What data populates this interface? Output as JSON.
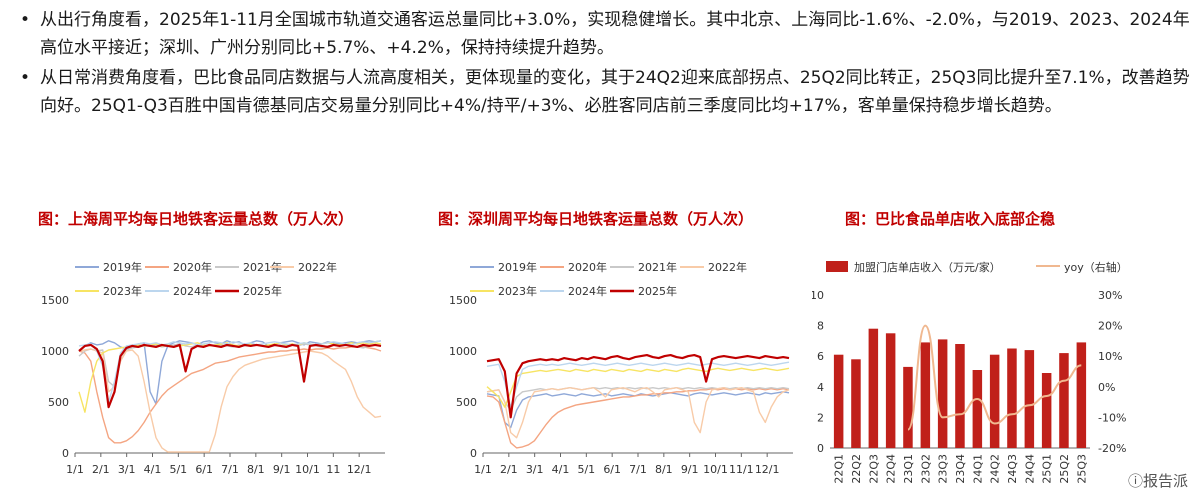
{
  "bullets": [
    "从出行角度看，2025年1-11月全国城市轨道交通客运总量同比+3.0%，实现稳健增长。其中北京、上海同比-1.6%、-2.0%，与2019、2023、2024年高位水平接近；深圳、广州分别同比+5.7%、+4.2%，保持持续提升趋势。",
    "从日常消费角度看，巴比食品同店数据与人流高度相关，更体现量的变化，其于24Q2迎来底部拐点、25Q2同比转正，25Q3同比提升至7.1%，改善趋势向好。25Q1-Q3百胜中国肯德基同店交易量分别同比+4%/持平/+3%、必胜客同店前三季度同比均+17%，客单量保持稳步增长趋势。"
  ],
  "bullet_symbol": "•",
  "watermark": "ⓘ报告派",
  "colors": {
    "y2019": "#8fa8d8",
    "y2020": "#f4a582",
    "y2021": "#c9c9c9",
    "y2022": "#f8cba8",
    "y2023": "#f7e463",
    "y2024": "#bcd6ee",
    "y2025": "#c00000",
    "bar": "#c0201a",
    "yoy": "#f0b890",
    "title": "#c00000"
  },
  "chart_data": [
    {
      "type": "line",
      "title": "图：上海周平均每日地铁客运量总数（万人次）",
      "x_ticks": [
        "1/1",
        "2/1",
        "3/1",
        "4/1",
        "5/1",
        "6/1",
        "7/1",
        "8/1",
        "9/1",
        "10/1",
        "11",
        "12/1"
      ],
      "ylim": [
        0,
        1500
      ],
      "y_ticks": [
        "0",
        "500",
        "1000",
        "1500"
      ],
      "series": [
        {
          "name": "2019年",
          "key": "y2019",
          "values": [
            1000,
            1050,
            1080,
            1060,
            1070,
            1100,
            1080,
            1040,
            1020,
            1050,
            1070,
            1080,
            600,
            480,
            900,
            1050,
            1080,
            1100,
            1090,
            1080,
            1060,
            1090,
            1100,
            1080,
            1070,
            1100,
            1080,
            1090,
            1060,
            1080,
            1100,
            1090,
            1050,
            1070,
            1080,
            1090,
            1100,
            1080,
            1060,
            1090,
            1080,
            1070,
            1090,
            1080,
            1070,
            1080,
            1090,
            1080,
            1090,
            1100,
            1090,
            1100
          ]
        },
        {
          "name": "2020年",
          "key": "y2020",
          "values": [
            1000,
            980,
            900,
            600,
            350,
            150,
            100,
            100,
            120,
            160,
            220,
            300,
            400,
            480,
            560,
            620,
            660,
            700,
            740,
            780,
            800,
            820,
            850,
            880,
            890,
            900,
            920,
            940,
            950,
            960,
            970,
            980,
            990,
            990,
            1000,
            1000,
            1010,
            1010,
            1020,
            1010,
            1020,
            1020,
            1030,
            1020,
            1030,
            1030,
            1040,
            1040,
            1040,
            1030,
            1020,
            1000
          ]
        },
        {
          "name": "2021年",
          "key": "y2021",
          "values": [
            950,
            1000,
            1020,
            1000,
            1010,
            700,
            650,
            900,
            1010,
            1030,
            1040,
            1050,
            1050,
            1060,
            1040,
            1050,
            1060,
            1070,
            1050,
            1040,
            1060,
            1050,
            1060,
            1050,
            1060,
            1050,
            1040,
            1060,
            1050,
            1050,
            1060,
            1050,
            1040,
            1050,
            1060,
            1050,
            1060,
            1050,
            1070,
            1060,
            1050,
            1040,
            1050,
            1060,
            1050,
            1060,
            1050,
            1040,
            1030,
            1050,
            1060,
            1050
          ]
        },
        {
          "name": "2022年",
          "key": "y2022",
          "values": [
            1000,
            1010,
            1020,
            1000,
            980,
            600,
            650,
            900,
            1000,
            1010,
            950,
            700,
            400,
            150,
            50,
            10,
            10,
            10,
            10,
            10,
            10,
            10,
            10,
            180,
            450,
            650,
            750,
            820,
            860,
            880,
            900,
            920,
            930,
            940,
            950,
            960,
            970,
            980,
            990,
            1000,
            990,
            980,
            950,
            900,
            860,
            820,
            700,
            550,
            450,
            400,
            350,
            360
          ]
        },
        {
          "name": "2023年",
          "key": "y2023",
          "values": [
            600,
            400,
            700,
            900,
            980,
            1010,
            1020,
            1030,
            1040,
            1050,
            1060,
            1050,
            1060,
            1070,
            1050,
            1060,
            1040,
            1050,
            1060,
            1070,
            1080,
            1060,
            1050,
            1060,
            1070,
            1080,
            1060,
            1050,
            1060,
            1070,
            1060,
            1050,
            1060,
            1070,
            1080,
            1060,
            1070,
            1060,
            1080,
            1070,
            1060,
            1070,
            1080,
            1070,
            1060,
            1070,
            1080,
            1070,
            1080,
            1070,
            1080,
            1070
          ]
        },
        {
          "name": "2024年",
          "key": "y2024",
          "values": [
            1050,
            1060,
            1070,
            1000,
            850,
            500,
            700,
            980,
            1050,
            1060,
            1070,
            1080,
            1070,
            1080,
            1060,
            1070,
            1090,
            1080,
            1070,
            1080,
            1060,
            1070,
            1080,
            1090,
            1080,
            1070,
            1090,
            1080,
            1070,
            1080,
            1060,
            1070,
            1080,
            1090,
            1080,
            1070,
            1060,
            1070,
            1080,
            1070,
            1060,
            1070,
            1080,
            1090,
            1080,
            1070,
            1060,
            1080,
            1090,
            1080,
            1090,
            1100
          ]
        },
        {
          "name": "2025年",
          "key": "y2025",
          "values": [
            1000,
            1050,
            1060,
            1020,
            900,
            450,
            600,
            950,
            1030,
            1050,
            1040,
            1060,
            1050,
            1040,
            1060,
            1050,
            1040,
            1060,
            800,
            1020,
            1050,
            1040,
            1060,
            1050,
            1040,
            1060,
            1050,
            1040,
            1060,
            1050,
            1060,
            1050,
            1040,
            1060,
            1050,
            1040,
            1060,
            1050,
            700,
            1050,
            1060,
            1050,
            1040,
            1060,
            1050,
            1060,
            1050,
            1040,
            1060,
            1050,
            1060,
            1050
          ]
        }
      ]
    },
    {
      "type": "line",
      "title": "图：深圳周平均每日地铁客运量总数（万人次）",
      "x_ticks": [
        "1/1",
        "2/1",
        "3/1",
        "4/1",
        "5/1",
        "6/1",
        "7/1",
        "8/1",
        "9/1",
        "10/1",
        "11/1",
        "12/1"
      ],
      "ylim": [
        0,
        1500
      ],
      "y_ticks": [
        "0",
        "500",
        "1000",
        "1500"
      ],
      "series": [
        {
          "name": "2019年",
          "key": "y2019",
          "values": [
            580,
            570,
            560,
            300,
            250,
            420,
            520,
            550,
            560,
            570,
            580,
            560,
            570,
            580,
            570,
            560,
            580,
            570,
            560,
            570,
            580,
            560,
            570,
            580,
            570,
            560,
            580,
            570,
            560,
            570,
            580,
            590,
            580,
            570,
            560,
            580,
            590,
            580,
            570,
            580,
            590,
            580,
            570,
            580,
            590,
            580,
            570,
            590,
            580,
            590,
            600,
            590
          ]
        },
        {
          "name": "2020年",
          "key": "y2020",
          "values": [
            560,
            550,
            500,
            300,
            100,
            50,
            60,
            80,
            120,
            200,
            280,
            350,
            400,
            430,
            450,
            470,
            480,
            490,
            500,
            510,
            520,
            530,
            540,
            550,
            550,
            560,
            570,
            570,
            580,
            580,
            590,
            590,
            600,
            600,
            610,
            610,
            620,
            620,
            630,
            620,
            630,
            620,
            630,
            620,
            630,
            620,
            630,
            620,
            630,
            620,
            630,
            620
          ]
        },
        {
          "name": "2021年",
          "key": "y2021",
          "values": [
            600,
            610,
            620,
            500,
            420,
            550,
            600,
            610,
            620,
            630,
            620,
            630,
            620,
            630,
            640,
            630,
            620,
            630,
            640,
            630,
            640,
            630,
            640,
            630,
            640,
            630,
            640,
            630,
            640,
            630,
            640,
            630,
            640,
            630,
            640,
            630,
            640,
            630,
            640,
            630,
            640,
            630,
            640,
            630,
            640,
            630,
            640,
            630,
            640,
            630,
            640,
            630
          ]
        },
        {
          "name": "2022年",
          "key": "y2022",
          "values": [
            600,
            610,
            620,
            500,
            200,
            150,
            300,
            500,
            600,
            610,
            620,
            630,
            620,
            630,
            640,
            630,
            620,
            630,
            640,
            600,
            550,
            620,
            630,
            640,
            620,
            600,
            630,
            640,
            600,
            550,
            620,
            630,
            640,
            620,
            600,
            300,
            200,
            500,
            620,
            630,
            640,
            620,
            630,
            640,
            620,
            600,
            400,
            300,
            450,
            550,
            600,
            620
          ]
        },
        {
          "name": "2023年",
          "key": "y2023",
          "values": [
            650,
            600,
            550,
            450,
            600,
            750,
            780,
            790,
            800,
            810,
            800,
            810,
            820,
            810,
            800,
            820,
            810,
            800,
            820,
            810,
            800,
            820,
            810,
            800,
            820,
            810,
            800,
            820,
            810,
            800,
            820,
            810,
            800,
            820,
            830,
            820,
            810,
            800,
            820,
            830,
            820,
            810,
            820,
            830,
            820,
            810,
            820,
            830,
            820,
            810,
            820,
            830
          ]
        },
        {
          "name": "2024年",
          "key": "y2024",
          "values": [
            850,
            860,
            870,
            700,
            450,
            650,
            820,
            850,
            860,
            870,
            860,
            870,
            860,
            870,
            880,
            870,
            860,
            870,
            880,
            870,
            860,
            870,
            880,
            870,
            860,
            870,
            880,
            870,
            860,
            870,
            880,
            870,
            860,
            870,
            880,
            870,
            860,
            870,
            880,
            870,
            860,
            870,
            880,
            870,
            860,
            870,
            880,
            870,
            860,
            870,
            880,
            890
          ]
        },
        {
          "name": "2025年",
          "key": "y2025",
          "values": [
            900,
            910,
            920,
            800,
            350,
            780,
            880,
            900,
            910,
            920,
            910,
            920,
            910,
            930,
            920,
            910,
            930,
            920,
            940,
            930,
            920,
            940,
            950,
            930,
            920,
            940,
            950,
            960,
            940,
            930,
            950,
            960,
            940,
            930,
            950,
            960,
            940,
            700,
            920,
            940,
            950,
            940,
            930,
            940,
            950,
            940,
            930,
            950,
            940,
            930,
            940,
            930
          ]
        }
      ]
    },
    {
      "type": "bar",
      "title": "图：巴比食品单店收入底部企稳",
      "categories": [
        "22Q1",
        "22Q2",
        "22Q3",
        "22Q4",
        "23Q1",
        "23Q2",
        "23Q3",
        "23Q4",
        "24Q1",
        "24Q2",
        "24Q3",
        "24Q4",
        "25Q1",
        "25Q2",
        "25Q3"
      ],
      "ylim": [
        0,
        10
      ],
      "y_ticks": [
        "0",
        "2",
        "4",
        "6",
        "8",
        "10"
      ],
      "y2lim": [
        -20,
        30
      ],
      "y2_ticks": [
        "-20%",
        "-10%",
        "0%",
        "10%",
        "20%",
        "30%"
      ],
      "series": [
        {
          "name": "加盟门店单店收入（万元/家）",
          "type": "bar",
          "values": [
            6.1,
            5.8,
            7.8,
            7.5,
            5.3,
            6.9,
            7.1,
            6.8,
            5.1,
            6.1,
            6.5,
            6.4,
            4.9,
            6.2,
            6.9
          ]
        },
        {
          "name": "yoy（右轴）",
          "type": "line",
          "axis": "right",
          "values": [
            null,
            null,
            null,
            null,
            -14,
            20,
            -10,
            -9,
            -4,
            -12,
            -9,
            -6,
            -3,
            2,
            7
          ]
        }
      ]
    }
  ]
}
